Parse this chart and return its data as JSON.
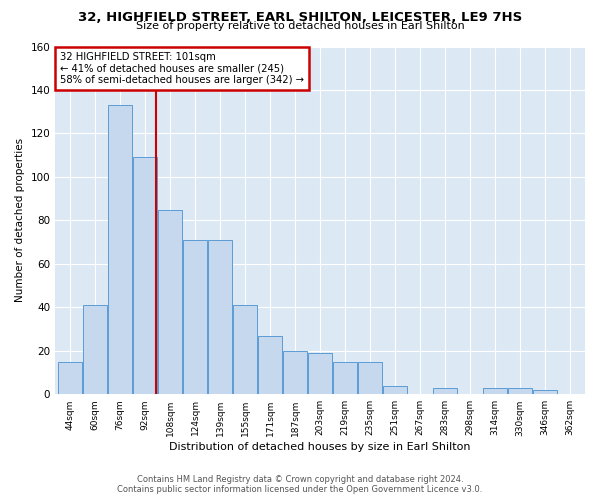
{
  "title": "32, HIGHFIELD STREET, EARL SHILTON, LEICESTER, LE9 7HS",
  "subtitle": "Size of property relative to detached houses in Earl Shilton",
  "xlabel": "Distribution of detached houses by size in Earl Shilton",
  "ylabel": "Number of detached properties",
  "bar_color": "#c5d8ed",
  "bar_edge_color": "#5b9bd5",
  "background_color": "#dce9f5",
  "fig_background": "#ffffff",
  "bins": [
    "44sqm",
    "60sqm",
    "76sqm",
    "92sqm",
    "108sqm",
    "124sqm",
    "139sqm",
    "155sqm",
    "171sqm",
    "187sqm",
    "203sqm",
    "219sqm",
    "235sqm",
    "251sqm",
    "267sqm",
    "283sqm",
    "298sqm",
    "314sqm",
    "330sqm",
    "346sqm",
    "362sqm"
  ],
  "values": [
    15,
    41,
    133,
    109,
    85,
    71,
    71,
    41,
    27,
    20,
    19,
    15,
    15,
    4,
    0,
    3,
    0,
    3,
    3,
    2,
    0
  ],
  "property_label": "32 HIGHFIELD STREET: 101sqm",
  "annotation_line1": "← 41% of detached houses are smaller (245)",
  "annotation_line2": "58% of semi-detached houses are larger (342) →",
  "vline_bin_index": 3.44,
  "ylim": [
    0,
    160
  ],
  "yticks": [
    0,
    20,
    40,
    60,
    80,
    100,
    120,
    140,
    160
  ],
  "footer_line1": "Contains HM Land Registry data © Crown copyright and database right 2024.",
  "footer_line2": "Contains public sector information licensed under the Open Government Licence v3.0.",
  "annotation_box_color": "#ffffff",
  "annotation_box_edge": "#cc0000",
  "vline_color": "#cc0000",
  "grid_color": "#ffffff"
}
